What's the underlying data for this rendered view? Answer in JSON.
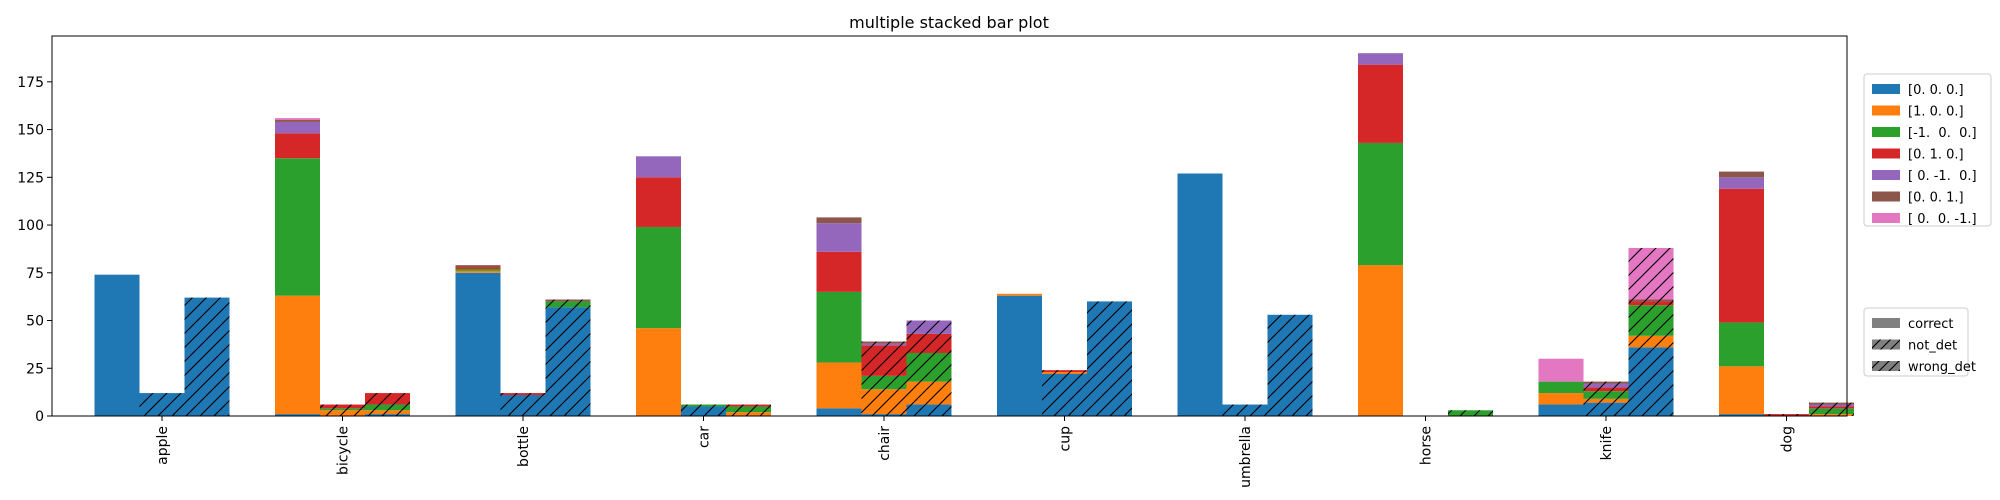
{
  "chart_data": {
    "type": "bar",
    "stacked": true,
    "title": "multiple stacked bar plot",
    "xlabel": "",
    "ylabel": "",
    "ylim": [
      0,
      199
    ],
    "yticks": [
      0,
      25,
      50,
      75,
      100,
      125,
      150,
      175
    ],
    "categories": [
      "apple",
      "bicycle",
      "bottle",
      "car",
      "chair",
      "cup",
      "umbrella",
      "horse",
      "knife",
      "dog"
    ],
    "groups": [
      "correct",
      "not_det",
      "wrong_det"
    ],
    "series": [
      {
        "name": "[0. 0. 0.]",
        "color": "#1f77b4",
        "values": [
          [
            74,
            12,
            62
          ],
          [
            1,
            0,
            1
          ],
          [
            75,
            11,
            57
          ],
          [
            0,
            5,
            0
          ],
          [
            4,
            1,
            6
          ],
          [
            63,
            22,
            60
          ],
          [
            127,
            6,
            53
          ],
          [
            0,
            0,
            0
          ],
          [
            6,
            7,
            36
          ],
          [
            1,
            0,
            0
          ]
        ]
      },
      {
        "name": "[1. 0. 0.]",
        "color": "#ff7f0e",
        "values": [
          [
            0,
            0,
            0
          ],
          [
            62,
            3,
            2
          ],
          [
            1,
            0,
            0
          ],
          [
            46,
            0,
            2
          ],
          [
            24,
            13,
            12
          ],
          [
            1,
            1,
            0
          ],
          [
            0,
            0,
            0
          ],
          [
            79,
            0,
            0
          ],
          [
            6,
            2,
            6
          ],
          [
            25,
            0,
            1
          ]
        ]
      },
      {
        "name": "[-1.  0.  0.]",
        "color": "#2ca02c",
        "values": [
          [
            0,
            0,
            0
          ],
          [
            72,
            1,
            3
          ],
          [
            1,
            0,
            3
          ],
          [
            53,
            1,
            3
          ],
          [
            37,
            7,
            15
          ],
          [
            0,
            0,
            0
          ],
          [
            0,
            0,
            0
          ],
          [
            64,
            0,
            3
          ],
          [
            6,
            4,
            16
          ],
          [
            23,
            0,
            3
          ]
        ]
      },
      {
        "name": "[0. 1. 0.]",
        "color": "#d62728",
        "values": [
          [
            0,
            0,
            0
          ],
          [
            13,
            2,
            6
          ],
          [
            1,
            1,
            0
          ],
          [
            26,
            0,
            1
          ],
          [
            21,
            16,
            10
          ],
          [
            0,
            1,
            0
          ],
          [
            0,
            0,
            0
          ],
          [
            41,
            0,
            0
          ],
          [
            0,
            2,
            2
          ],
          [
            70,
            1,
            1
          ]
        ]
      },
      {
        "name": "[ 0. -1.  0.]",
        "color": "#9467bd",
        "values": [
          [
            0,
            0,
            0
          ],
          [
            6,
            0,
            0
          ],
          [
            0,
            0,
            0
          ],
          [
            11,
            0,
            0
          ],
          [
            15,
            1,
            7
          ],
          [
            0,
            0,
            0
          ],
          [
            0,
            0,
            0
          ],
          [
            6,
            0,
            0
          ],
          [
            0,
            2,
            0
          ],
          [
            6,
            0,
            1
          ]
        ]
      },
      {
        "name": "[0. 0. 1.]",
        "color": "#8c564b",
        "values": [
          [
            0,
            0,
            0
          ],
          [
            1,
            0,
            0
          ],
          [
            1,
            0,
            1
          ],
          [
            0,
            0,
            0
          ],
          [
            3,
            1,
            0
          ],
          [
            0,
            0,
            0
          ],
          [
            0,
            0,
            0
          ],
          [
            0,
            0,
            0
          ],
          [
            0,
            1,
            1
          ],
          [
            3,
            0,
            1
          ]
        ]
      },
      {
        "name": "[ 0.  0. -1.]",
        "color": "#e377c2",
        "values": [
          [
            0,
            0,
            0
          ],
          [
            1,
            0,
            0
          ],
          [
            0,
            0,
            0
          ],
          [
            0,
            0,
            0
          ],
          [
            0,
            0,
            0
          ],
          [
            0,
            0,
            0
          ],
          [
            0,
            0,
            0
          ],
          [
            0,
            0,
            0
          ],
          [
            12,
            0,
            27
          ],
          [
            0,
            0,
            0
          ]
        ]
      }
    ],
    "legend_series_placement": "right",
    "legend_groups_placement": "right",
    "grid": false
  }
}
